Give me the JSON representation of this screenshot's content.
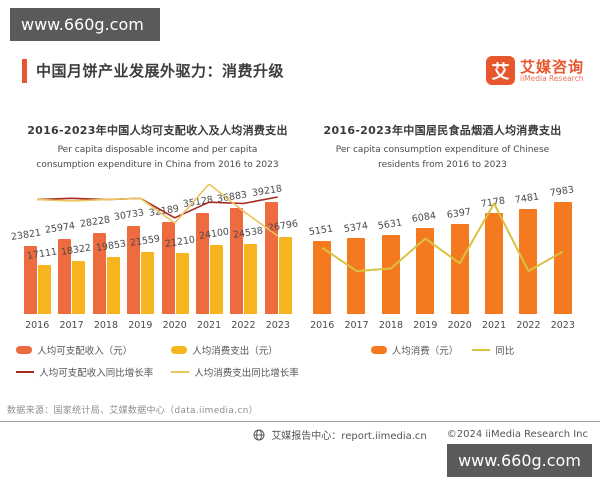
{
  "watermarks": {
    "top": "www.660g.com",
    "bottom": "www.660g.com"
  },
  "header": {
    "title": "中国月饼产业发展外驱力：消费升级"
  },
  "logo": {
    "symbol": "艾",
    "name_cn": "艾媒咨询",
    "name_en": "iiMedia Research"
  },
  "chart_data": [
    {
      "type": "bar",
      "title": "2016-2023年中国人均可支配收入及人均消费支出",
      "subtitle": "Per capita disposable income and per capita consumption expenditure in China from 2016 to 2023",
      "categories": [
        "2016",
        "2017",
        "2018",
        "2019",
        "2020",
        "2021",
        "2022",
        "2023"
      ],
      "series": [
        {
          "name": "人均可支配收入（元）",
          "kind": "bar",
          "color": "#ee6a3f",
          "values": [
            23821,
            25974,
            28228,
            30733,
            32189,
            35128,
            36883,
            39218
          ]
        },
        {
          "name": "人均消费支出（元）",
          "kind": "bar",
          "color": "#f6b51e",
          "values": [
            17111,
            18322,
            19853,
            21559,
            21210,
            24100,
            24538,
            26796
          ]
        },
        {
          "name": "人均可支配收入同比增长率",
          "kind": "line",
          "color": "#a52a1f",
          "values_rel": [
            0.88,
            0.89,
            0.88,
            0.89,
            0.74,
            0.86,
            0.85,
            0.9
          ]
        },
        {
          "name": "人均消费支出同比增长率",
          "kind": "line",
          "color": "#ebc45c",
          "values_rel": [
            0.88,
            0.87,
            0.88,
            0.89,
            0.7,
            1.0,
            0.79,
            0.6
          ]
        }
      ],
      "ylim": [
        0,
        39218
      ],
      "grid": false,
      "legend_position": "bottom"
    },
    {
      "type": "bar",
      "title": "2016-2023年中国居民食品烟酒人均消费支出",
      "subtitle": "Per capita consumption expenditure of Chinese residents from 2016 to 2023",
      "categories": [
        "2016",
        "2017",
        "2018",
        "2019",
        "2020",
        "2021",
        "2022",
        "2023"
      ],
      "series": [
        {
          "name": "人均消费（元）",
          "kind": "bar",
          "color": "#f57a1f",
          "values": [
            5151,
            5374,
            5631,
            6084,
            6397,
            7178,
            7481,
            7983
          ]
        },
        {
          "name": "同比",
          "kind": "line",
          "color": "#d8c23f",
          "values_rel": [
            0.51,
            0.33,
            0.35,
            0.58,
            0.39,
            0.85,
            0.33,
            0.48
          ]
        }
      ],
      "ylim": [
        0,
        7983
      ],
      "grid": false,
      "legend_position": "bottom"
    }
  ],
  "footer": {
    "source": "数据来源：国家统计局、艾媒数据中心（data.iimedia.cn）",
    "report_center": "艾媒报告中心：report.iimedia.cn",
    "copyright": "©2024  iiMedia Research Inc"
  }
}
